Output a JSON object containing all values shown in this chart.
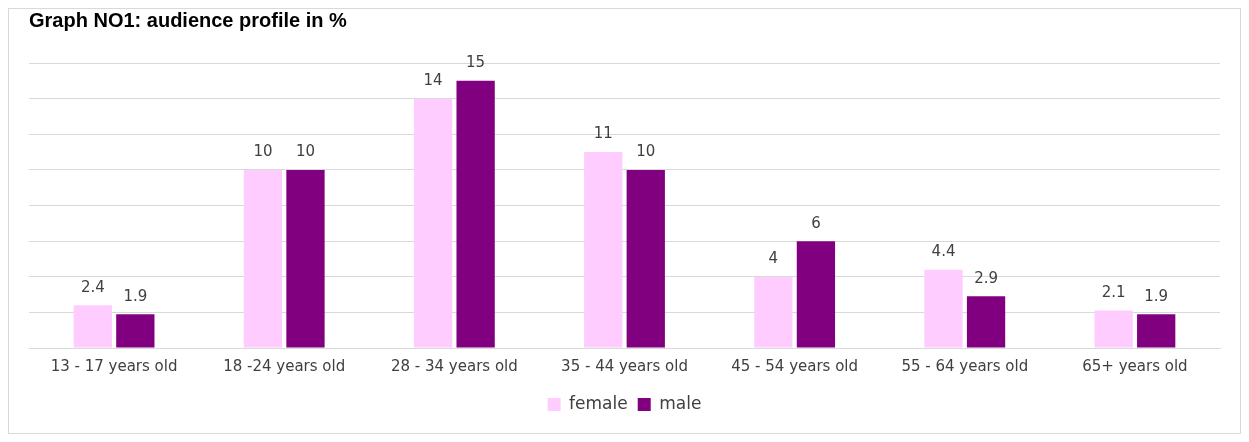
{
  "chart_data": {
    "type": "bar",
    "title": "Graph NO1: audience profile in %",
    "categories": [
      "13 - 17 years old",
      "18 -24 years old",
      "28 - 34 years old",
      "35 - 44 years old",
      "45 - 54 years old",
      "55 - 64 years old",
      "65+ years old"
    ],
    "series": [
      {
        "name": "female",
        "color": "#ffccff",
        "values": [
          2.4,
          10,
          14,
          11,
          4,
          4.4,
          2.1
        ]
      },
      {
        "name": "male",
        "color": "#800080",
        "values": [
          1.9,
          10,
          15,
          10,
          6,
          2.9,
          1.9
        ]
      }
    ],
    "ylim": [
      0,
      16
    ],
    "yticks": [
      {
        "value": 0,
        "label": null
      },
      {
        "value": 2,
        "label": null
      },
      {
        "value": 4,
        "label": null
      },
      {
        "value": 6,
        "label": null
      },
      {
        "value": 8,
        "label": null
      },
      {
        "value": 10,
        "label": null
      },
      {
        "value": 12,
        "label": null
      },
      {
        "value": 14,
        "label": null
      },
      {
        "value": 16,
        "label": null
      }
    ],
    "tick_labels": "x",
    "grid": "y",
    "legend": "bottom",
    "data_labels": true
  }
}
